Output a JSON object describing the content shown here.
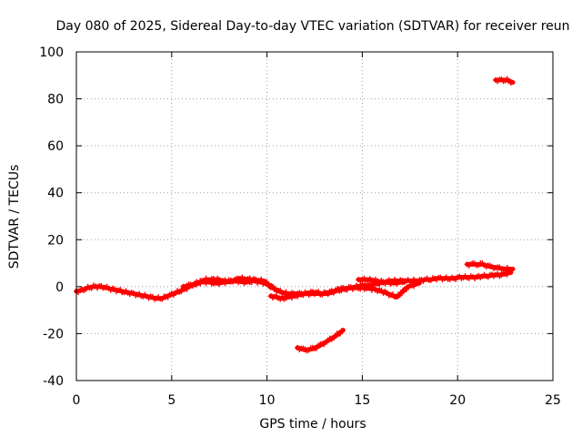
{
  "chart_data": {
    "type": "scatter",
    "title": "Day 080 of 2025, Sidereal Day-to-day VTEC variation (SDTVAR) for receiver reun",
    "xlabel": "GPS time / hours",
    "ylabel": "SDTVAR / TECUs",
    "xlim": [
      0,
      25
    ],
    "ylim": [
      -40,
      100
    ],
    "grid": true,
    "x_ticks": [
      "0",
      "5",
      "10",
      "15",
      "20",
      "25"
    ],
    "y_ticks": [
      "-40",
      "-20",
      "0",
      "20",
      "40",
      "60",
      "80",
      "100"
    ],
    "series": [
      {
        "name": "SDTVAR",
        "color": "#ff0000",
        "segments": [
          {
            "x": [
              0.0,
              0.3,
              0.6,
              0.9,
              1.2,
              1.5,
              1.8,
              2.1,
              2.4,
              2.7,
              3.0,
              3.3,
              3.6,
              3.9,
              4.2,
              4.5,
              4.8,
              5.1,
              5.4,
              5.7,
              6.0,
              6.3,
              6.6,
              6.9,
              7.2,
              7.5,
              7.8,
              8.1,
              8.4,
              8.7,
              9.0,
              9.3,
              9.6,
              9.9,
              10.2,
              10.5,
              10.8,
              11.1,
              11.4,
              11.7,
              12.0,
              12.3,
              12.6,
              12.9,
              13.2,
              13.5,
              13.8,
              14.1,
              14.4,
              14.7,
              15.0,
              15.3,
              15.6,
              15.9,
              16.2,
              16.5,
              16.8,
              17.1,
              17.4,
              17.7,
              18.0,
              18.3,
              18.6,
              18.9,
              19.2,
              19.5,
              19.8,
              20.1,
              20.4,
              20.7,
              21.0,
              21.3,
              21.6,
              21.9,
              22.2,
              22.5,
              22.8
            ],
            "y": [
              -2,
              -1.5,
              -0.5,
              0,
              0,
              -0.3,
              -1,
              -1.5,
              -2,
              -2.5,
              -3,
              -3.5,
              -4,
              -4.5,
              -5,
              -5,
              -4,
              -3,
              -2,
              -1,
              0.5,
              1.5,
              2,
              2,
              1.5,
              1.5,
              2,
              2.5,
              2.5,
              2,
              2,
              2.5,
              2,
              1.5,
              0,
              -1.5,
              -2.5,
              -3,
              -3,
              -3,
              -3,
              -2.5,
              -2.5,
              -3,
              -2.5,
              -2,
              -1.5,
              -1,
              -0.5,
              0,
              0.5,
              0.5,
              1,
              1.5,
              2,
              2.5,
              2.5,
              2.5,
              2.5,
              2.5,
              2.5,
              3,
              3,
              3.5,
              3.5,
              3.5,
              3.5,
              4,
              4,
              4,
              4,
              4.5,
              4.5,
              5,
              5,
              5.5,
              6
            ]
          },
          {
            "x": [
              5.6,
              6.2,
              6.8,
              7.4,
              8.0,
              8.6,
              9.2,
              9.8,
              10.4
            ],
            "y": [
              0,
              1,
              3,
              3,
              2,
              3.5,
              3,
              2.5,
              -1
            ]
          },
          {
            "x": [
              10.2,
              10.8,
              11.4,
              12.0,
              12.6,
              13.2,
              13.8,
              14.4
            ],
            "y": [
              -4,
              -5,
              -4,
              -3,
              -3,
              -3,
              -1,
              -0.5
            ]
          },
          {
            "x": [
              14.4,
              15.0,
              15.6,
              16.2,
              16.8,
              17.4,
              18.0
            ],
            "y": [
              -0.5,
              -0.5,
              -1,
              -2.5,
              -4.5,
              0,
              1.5
            ]
          },
          {
            "x": [
              14.8,
              15.4,
              16.0,
              16.6,
              17.2
            ],
            "y": [
              3,
              3,
              2,
              1.5,
              2
            ]
          },
          {
            "x": [
              11.6,
              12.0,
              12.4,
              12.8,
              13.2,
              13.6,
              14.0
            ],
            "y": [
              -26,
              -27,
              -26.5,
              -25,
              -23,
              -21,
              -18.5
            ]
          },
          {
            "x": [
              20.5,
              20.9,
              21.3,
              21.7,
              22.1,
              22.5,
              22.9
            ],
            "y": [
              9.5,
              9.5,
              9.5,
              8.5,
              8,
              7.5,
              7.5
            ]
          },
          {
            "x": [
              22.0,
              22.3,
              22.6,
              22.9
            ],
            "y": [
              88,
              88,
              88,
              87
            ]
          }
        ]
      }
    ]
  }
}
